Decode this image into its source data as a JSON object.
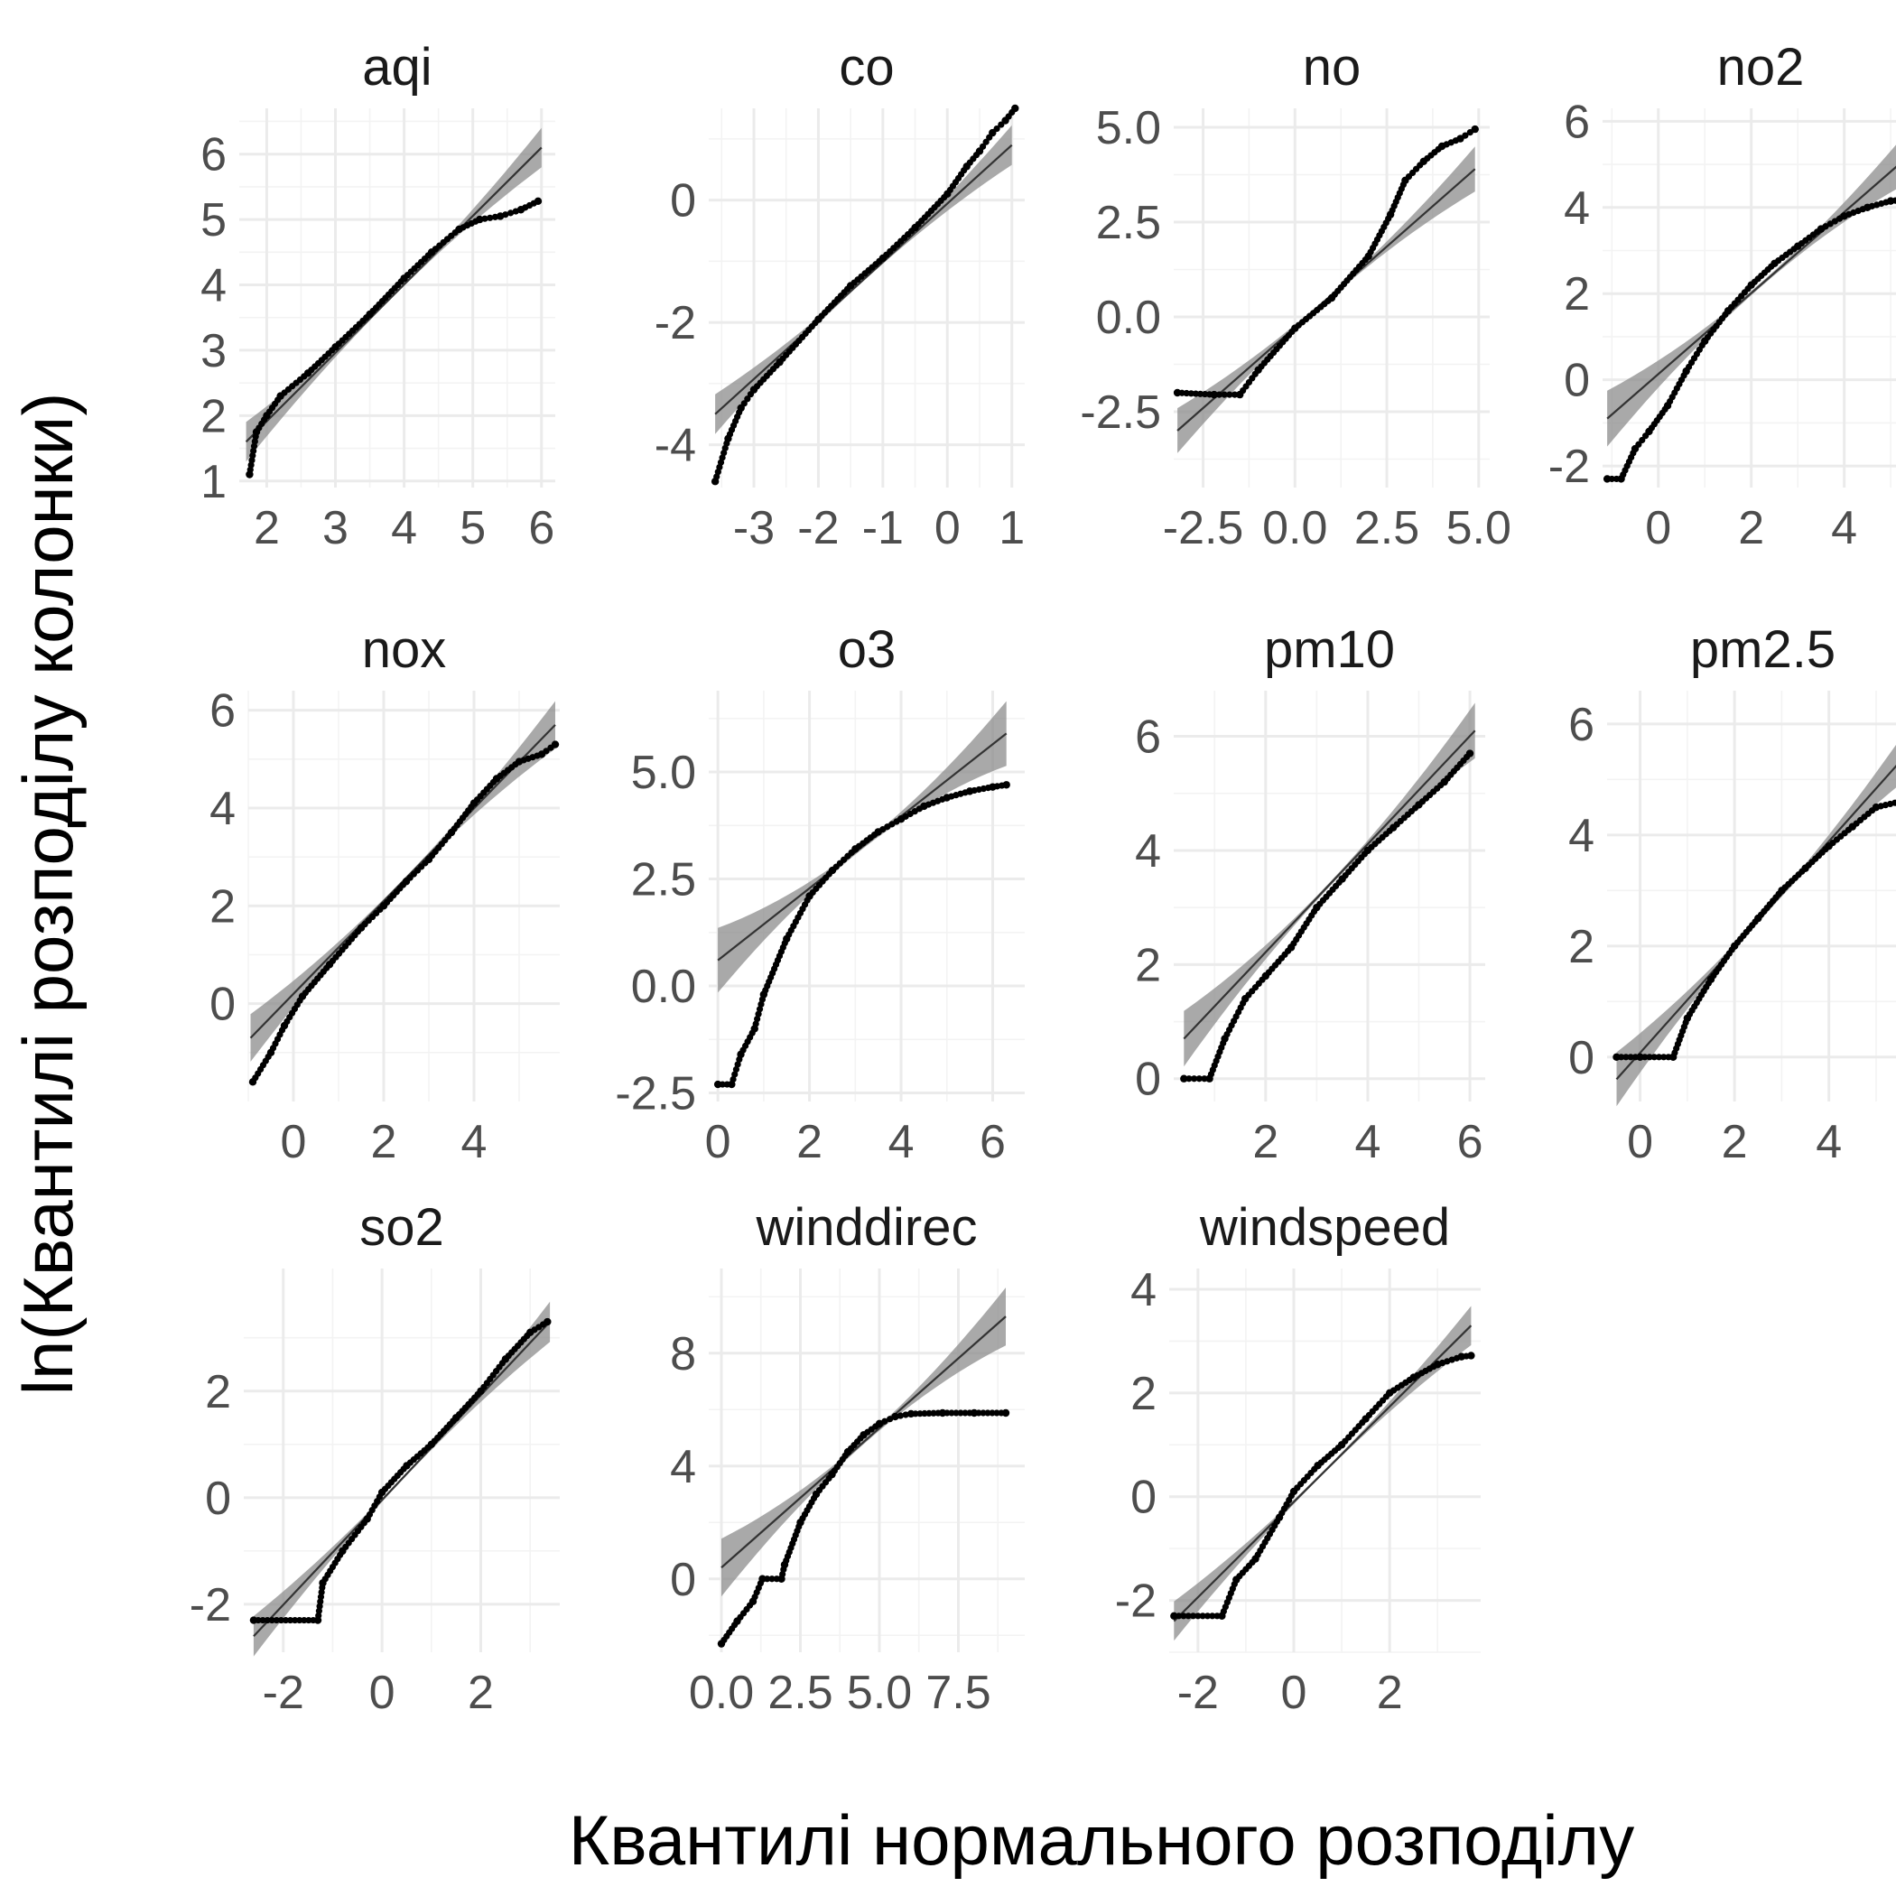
{
  "chart_data": {
    "type": "scatter",
    "xlabel": "Квантилі нормального розподілу",
    "ylabel": "ln(Квантилі розподілу колонки)",
    "grid": true,
    "facets": [
      {
        "name": "aqi",
        "xlim": [
          1.6,
          6.2
        ],
        "ylim": [
          0.9,
          6.7
        ],
        "xticks": [
          {
            "v": 2,
            "l": "2"
          },
          {
            "v": 3,
            "l": "3"
          },
          {
            "v": 4,
            "l": "4"
          },
          {
            "v": 5,
            "l": "5"
          },
          {
            "v": 6,
            "l": "6"
          }
        ],
        "yticks": [
          {
            "v": 1,
            "l": "1"
          },
          {
            "v": 2,
            "l": "2"
          },
          {
            "v": 3,
            "l": "3"
          },
          {
            "v": 4,
            "l": "4"
          },
          {
            "v": 5,
            "l": "5"
          },
          {
            "v": 6,
            "l": "6"
          }
        ],
        "line": [
          [
            1.7,
            1.6
          ],
          [
            6.0,
            6.1
          ]
        ],
        "band_spread": 0.28,
        "points": [
          [
            1.75,
            1.1
          ],
          [
            1.85,
            1.75
          ],
          [
            2.0,
            2.0
          ],
          [
            2.2,
            2.3
          ],
          [
            2.6,
            2.65
          ],
          [
            3.0,
            3.05
          ],
          [
            3.5,
            3.55
          ],
          [
            4.0,
            4.1
          ],
          [
            4.4,
            4.5
          ],
          [
            4.8,
            4.85
          ],
          [
            5.1,
            5.0
          ],
          [
            5.4,
            5.05
          ],
          [
            5.7,
            5.15
          ],
          [
            5.95,
            5.28
          ]
        ]
      },
      {
        "name": "co",
        "xlim": [
          -3.7,
          1.2
        ],
        "ylim": [
          -4.7,
          1.5
        ],
        "xticks": [
          {
            "v": -3,
            "l": "-3"
          },
          {
            "v": -2,
            "l": "-2"
          },
          {
            "v": -1,
            "l": "-1"
          },
          {
            "v": 0,
            "l": "0"
          },
          {
            "v": 1,
            "l": "1"
          }
        ],
        "yticks": [
          {
            "v": -4,
            "l": "-4"
          },
          {
            "v": -2,
            "l": "-2"
          },
          {
            "v": 0,
            "l": "0"
          }
        ],
        "line": [
          [
            -3.6,
            -3.5
          ],
          [
            1.0,
            0.9
          ]
        ],
        "band_spread": 0.3,
        "points": [
          [
            -3.6,
            -4.6
          ],
          [
            -3.4,
            -3.9
          ],
          [
            -3.2,
            -3.4
          ],
          [
            -3.0,
            -3.1
          ],
          [
            -2.6,
            -2.65
          ],
          [
            -2.0,
            -1.95
          ],
          [
            -1.5,
            -1.4
          ],
          [
            -1.0,
            -0.95
          ],
          [
            -0.5,
            -0.45
          ],
          [
            0.0,
            0.1
          ],
          [
            0.3,
            0.55
          ],
          [
            0.5,
            0.8
          ],
          [
            0.7,
            1.1
          ],
          [
            0.9,
            1.3
          ],
          [
            1.05,
            1.5
          ]
        ]
      },
      {
        "name": "no",
        "xlim": [
          -3.3,
          5.3
        ],
        "ylim": [
          -4.5,
          5.5
        ],
        "xticks": [
          {
            "v": -2.5,
            "l": "-2.5"
          },
          {
            "v": 0,
            "l": "0.0"
          },
          {
            "v": 2.5,
            "l": "2.5"
          },
          {
            "v": 5,
            "l": "5.0"
          }
        ],
        "yticks": [
          {
            "v": -2.5,
            "l": "-2.5"
          },
          {
            "v": 0,
            "l": "0.0"
          },
          {
            "v": 2.5,
            "l": "2.5"
          },
          {
            "v": 5,
            "l": "5.0"
          }
        ],
        "line": [
          [
            -3.2,
            -3.0
          ],
          [
            4.9,
            3.9
          ]
        ],
        "band_spread": 0.55,
        "points": [
          [
            -3.2,
            -2.0
          ],
          [
            -2.2,
            -2.05
          ],
          [
            -1.5,
            -2.05
          ],
          [
            -1.0,
            -1.4
          ],
          [
            0.0,
            -0.3
          ],
          [
            1.0,
            0.5
          ],
          [
            2.0,
            1.6
          ],
          [
            2.6,
            2.7
          ],
          [
            3.0,
            3.6
          ],
          [
            3.5,
            4.1
          ],
          [
            4.0,
            4.5
          ],
          [
            4.5,
            4.7
          ],
          [
            4.9,
            4.95
          ]
        ]
      },
      {
        "name": "no2",
        "xlim": [
          -1.2,
          5.6
        ],
        "ylim": [
          -2.5,
          6.3
        ],
        "xticks": [
          {
            "v": 0,
            "l": "0"
          },
          {
            "v": 2,
            "l": "2"
          },
          {
            "v": 4,
            "l": "4"
          }
        ],
        "yticks": [
          {
            "v": -2,
            "l": "-2"
          },
          {
            "v": 0,
            "l": "0"
          },
          {
            "v": 2,
            "l": "2"
          },
          {
            "v": 4,
            "l": "4"
          },
          {
            "v": 6,
            "l": "6"
          }
        ],
        "line": [
          [
            -1.1,
            -0.9
          ],
          [
            5.5,
            5.3
          ]
        ],
        "band_spread": 0.6,
        "points": [
          [
            -1.1,
            -2.3
          ],
          [
            -0.8,
            -2.3
          ],
          [
            -0.5,
            -1.6
          ],
          [
            -0.2,
            -1.2
          ],
          [
            0.2,
            -0.6
          ],
          [
            0.6,
            0.2
          ],
          [
            1.0,
            0.9
          ],
          [
            1.5,
            1.6
          ],
          [
            2.0,
            2.2
          ],
          [
            2.5,
            2.7
          ],
          [
            3.0,
            3.1
          ],
          [
            3.5,
            3.5
          ],
          [
            4.0,
            3.8
          ],
          [
            4.5,
            4.0
          ],
          [
            5.0,
            4.15
          ],
          [
            5.5,
            4.2
          ]
        ]
      },
      {
        "name": "nox",
        "xlim": [
          -1.0,
          5.9
        ],
        "ylim": [
          -2.0,
          6.4
        ],
        "xticks": [
          {
            "v": 0,
            "l": "0"
          },
          {
            "v": 2,
            "l": "2"
          },
          {
            "v": 4,
            "l": "4"
          }
        ],
        "yticks": [
          {
            "v": 0,
            "l": "0"
          },
          {
            "v": 2,
            "l": "2"
          },
          {
            "v": 4,
            "l": "4"
          },
          {
            "v": 6,
            "l": "6"
          }
        ],
        "line": [
          [
            -0.95,
            -0.7
          ],
          [
            5.8,
            5.7
          ]
        ],
        "band_spread": 0.45,
        "points": [
          [
            -0.9,
            -1.6
          ],
          [
            -0.5,
            -1.0
          ],
          [
            -0.2,
            -0.45
          ],
          [
            0.2,
            0.15
          ],
          [
            0.8,
            0.8
          ],
          [
            1.5,
            1.55
          ],
          [
            2.0,
            2.0
          ],
          [
            2.5,
            2.5
          ],
          [
            3.0,
            2.95
          ],
          [
            3.5,
            3.5
          ],
          [
            4.0,
            4.1
          ],
          [
            4.5,
            4.6
          ],
          [
            5.0,
            4.95
          ],
          [
            5.5,
            5.1
          ],
          [
            5.8,
            5.3
          ]
        ]
      },
      {
        "name": "o3",
        "xlim": [
          -0.2,
          6.7
        ],
        "ylim": [
          -2.7,
          6.9
        ],
        "xticks": [
          {
            "v": 0,
            "l": "0"
          },
          {
            "v": 2,
            "l": "2"
          },
          {
            "v": 4,
            "l": "4"
          },
          {
            "v": 6,
            "l": "6"
          }
        ],
        "yticks": [
          {
            "v": -2.5,
            "l": "-2.5"
          },
          {
            "v": 0,
            "l": "0.0"
          },
          {
            "v": 2.5,
            "l": "2.5"
          },
          {
            "v": 5,
            "l": "5.0"
          }
        ],
        "line": [
          [
            0.0,
            0.6
          ],
          [
            6.3,
            5.9
          ]
        ],
        "band_spread": 0.7,
        "points": [
          [
            0.0,
            -2.3
          ],
          [
            0.3,
            -2.3
          ],
          [
            0.5,
            -1.6
          ],
          [
            0.8,
            -1.0
          ],
          [
            1.0,
            -0.2
          ],
          [
            1.5,
            1.1
          ],
          [
            2.0,
            2.1
          ],
          [
            2.5,
            2.7
          ],
          [
            3.0,
            3.2
          ],
          [
            3.5,
            3.6
          ],
          [
            4.0,
            3.9
          ],
          [
            4.5,
            4.2
          ],
          [
            5.0,
            4.4
          ],
          [
            5.5,
            4.55
          ],
          [
            6.0,
            4.65
          ],
          [
            6.3,
            4.7
          ]
        ]
      },
      {
        "name": "pm10",
        "xlim": [
          0.2,
          6.3
        ],
        "ylim": [
          -0.4,
          6.8
        ],
        "xticks": [
          {
            "v": 2,
            "l": "2"
          },
          {
            "v": 4,
            "l": "4"
          },
          {
            "v": 6,
            "l": "6"
          }
        ],
        "yticks": [
          {
            "v": 0,
            "l": "0"
          },
          {
            "v": 2,
            "l": "2"
          },
          {
            "v": 4,
            "l": "4"
          },
          {
            "v": 6,
            "l": "6"
          }
        ],
        "line": [
          [
            0.4,
            0.7
          ],
          [
            6.1,
            6.1
          ]
        ],
        "band_spread": 0.45,
        "points": [
          [
            0.4,
            0.0
          ],
          [
            0.9,
            0.0
          ],
          [
            1.2,
            0.7
          ],
          [
            1.6,
            1.4
          ],
          [
            2.0,
            1.8
          ],
          [
            2.5,
            2.3
          ],
          [
            3.0,
            3.0
          ],
          [
            3.5,
            3.5
          ],
          [
            4.0,
            4.0
          ],
          [
            4.5,
            4.4
          ],
          [
            5.0,
            4.8
          ],
          [
            5.5,
            5.2
          ],
          [
            6.0,
            5.7
          ]
        ]
      },
      {
        "name": "pm2.5",
        "xlim": [
          -0.7,
          5.9
        ],
        "ylim": [
          -0.8,
          6.6
        ],
        "xticks": [
          {
            "v": 0,
            "l": "0"
          },
          {
            "v": 2,
            "l": "2"
          },
          {
            "v": 4,
            "l": "4"
          }
        ],
        "yticks": [
          {
            "v": 0,
            "l": "0"
          },
          {
            "v": 2,
            "l": "2"
          },
          {
            "v": 4,
            "l": "4"
          },
          {
            "v": 6,
            "l": "6"
          }
        ],
        "line": [
          [
            -0.5,
            -0.4
          ],
          [
            5.8,
            5.6
          ]
        ],
        "band_spread": 0.45,
        "points": [
          [
            -0.5,
            0.0
          ],
          [
            0.0,
            0.0
          ],
          [
            0.7,
            0.0
          ],
          [
            1.0,
            0.7
          ],
          [
            1.5,
            1.4
          ],
          [
            2.0,
            2.0
          ],
          [
            2.5,
            2.5
          ],
          [
            3.0,
            3.0
          ],
          [
            3.5,
            3.4
          ],
          [
            4.0,
            3.8
          ],
          [
            4.5,
            4.15
          ],
          [
            5.0,
            4.5
          ],
          [
            5.5,
            4.6
          ],
          [
            5.8,
            4.6
          ]
        ]
      },
      {
        "name": "so2",
        "xlim": [
          -2.8,
          3.6
        ],
        "ylim": [
          -2.9,
          4.3
        ],
        "xticks": [
          {
            "v": -2,
            "l": "-2"
          },
          {
            "v": 0,
            "l": "0"
          },
          {
            "v": 2,
            "l": "2"
          }
        ],
        "yticks": [
          {
            "v": -2,
            "l": "-2"
          },
          {
            "v": 0,
            "l": "0"
          },
          {
            "v": 2,
            "l": "2"
          }
        ],
        "line": [
          [
            -2.6,
            -2.6
          ],
          [
            3.4,
            3.3
          ]
        ],
        "band_spread": 0.35,
        "points": [
          [
            -2.6,
            -2.3
          ],
          [
            -1.3,
            -2.3
          ],
          [
            -1.2,
            -1.6
          ],
          [
            -0.8,
            -1.0
          ],
          [
            -0.3,
            -0.4
          ],
          [
            0.0,
            0.1
          ],
          [
            0.5,
            0.6
          ],
          [
            1.0,
            1.0
          ],
          [
            1.5,
            1.5
          ],
          [
            2.0,
            2.0
          ],
          [
            2.5,
            2.6
          ],
          [
            3.0,
            3.1
          ],
          [
            3.35,
            3.3
          ]
        ]
      },
      {
        "name": "winddirec",
        "xlim": [
          -0.4,
          9.6
        ],
        "ylim": [
          -2.6,
          11.0
        ],
        "xticks": [
          {
            "v": 0,
            "l": "0.0"
          },
          {
            "v": 2.5,
            "l": "2.5"
          },
          {
            "v": 5,
            "l": "5.0"
          },
          {
            "v": 7.5,
            "l": "7.5"
          }
        ],
        "yticks": [
          {
            "v": 0,
            "l": "0"
          },
          {
            "v": 4,
            "l": "4"
          },
          {
            "v": 8,
            "l": "8"
          }
        ],
        "line": [
          [
            0.0,
            0.4
          ],
          [
            9.0,
            9.3
          ]
        ],
        "band_spread": 0.95,
        "points": [
          [
            0.0,
            -2.3
          ],
          [
            0.5,
            -1.5
          ],
          [
            1.0,
            -0.8
          ],
          [
            1.3,
            0.0
          ],
          [
            1.9,
            0.0
          ],
          [
            2.0,
            0.5
          ],
          [
            2.5,
            2.0
          ],
          [
            3.0,
            3.0
          ],
          [
            3.5,
            3.7
          ],
          [
            4.0,
            4.5
          ],
          [
            4.5,
            5.1
          ],
          [
            5.0,
            5.5
          ],
          [
            5.5,
            5.75
          ],
          [
            6.0,
            5.85
          ],
          [
            7.0,
            5.88
          ],
          [
            8.0,
            5.88
          ],
          [
            9.0,
            5.88
          ]
        ]
      },
      {
        "name": "windspeed",
        "xlim": [
          -2.6,
          3.9
        ],
        "ylim": [
          -3.0,
          4.4
        ],
        "xticks": [
          {
            "v": -2,
            "l": "-2"
          },
          {
            "v": 0,
            "l": "0"
          },
          {
            "v": 2,
            "l": "2"
          }
        ],
        "yticks": [
          {
            "v": -2,
            "l": "-2"
          },
          {
            "v": 0,
            "l": "0"
          },
          {
            "v": 2,
            "l": "2"
          },
          {
            "v": 4,
            "l": "4"
          }
        ],
        "line": [
          [
            -2.5,
            -2.4
          ],
          [
            3.7,
            3.3
          ]
        ],
        "band_spread": 0.35,
        "points": [
          [
            -2.5,
            -2.3
          ],
          [
            -1.5,
            -2.3
          ],
          [
            -1.2,
            -1.6
          ],
          [
            -0.8,
            -1.2
          ],
          [
            -0.3,
            -0.4
          ],
          [
            0.0,
            0.1
          ],
          [
            0.5,
            0.6
          ],
          [
            1.0,
            1.0
          ],
          [
            1.5,
            1.5
          ],
          [
            2.0,
            2.0
          ],
          [
            2.5,
            2.3
          ],
          [
            3.0,
            2.55
          ],
          [
            3.5,
            2.7
          ],
          [
            3.7,
            2.72
          ]
        ]
      }
    ]
  }
}
